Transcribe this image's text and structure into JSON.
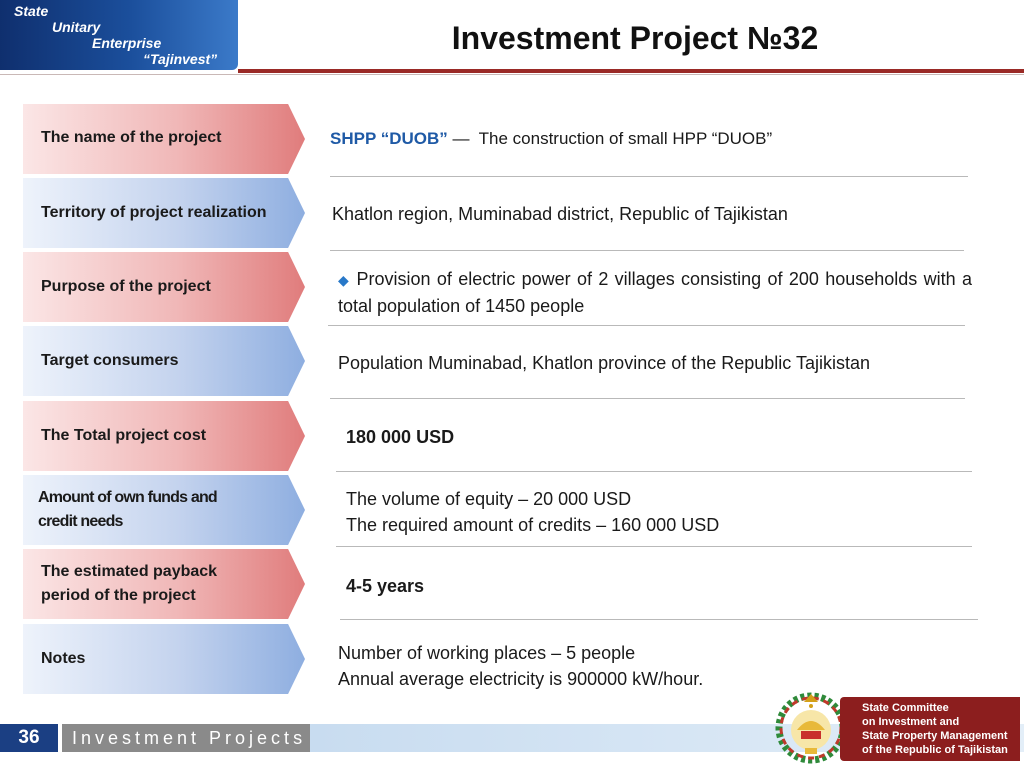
{
  "header": {
    "logo_lines": [
      "State",
      "Unitary",
      "Enterprise",
      "“Tajinvest”"
    ],
    "title": "Investment  Project №32"
  },
  "rows": [
    {
      "label": "The name of the project",
      "content_highlight": "SHPP “DUOB”",
      "content_dash": "—",
      "content": "The construction of small HPP “DUOB”"
    },
    {
      "label": "Territory of project realization",
      "content": "Khatlon region, Muminabad district, Republic of Tajikistan"
    },
    {
      "label": "Purpose of the project",
      "bullet": "◆",
      "content": "Provision of electric power of 2 villages consisting of 200 households with a total population of 1450 people"
    },
    {
      "label": "Target consumers",
      "content": "Population Muminabad, Khatlon province of the Republic Tajikistan"
    },
    {
      "label": "The Total project cost",
      "content": "180 000 USD"
    },
    {
      "label": "Amount of own funds and credit needs",
      "content_line1": "The volume of equity – 20 000 USD",
      "content_line2": "The required amount of credits – 160 000 USD"
    },
    {
      "label": "The estimated payback period of the project",
      "content": "4-5 years"
    },
    {
      "label": "Notes",
      "content_line1": "Number of working places – 5 people",
      "content_line2": "Annual average electricity is 900000 kW/hour."
    }
  ],
  "footer": {
    "page_number": "36",
    "section": "Investment Projects",
    "committee_lines": [
      "State Committee",
      "on Investment and",
      "State Property Management",
      "of the Republic of Tajikistan"
    ]
  }
}
